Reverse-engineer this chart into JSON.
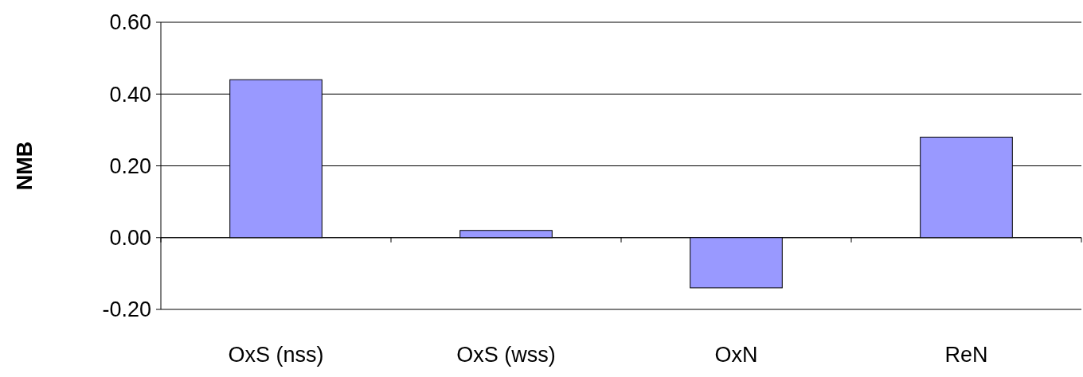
{
  "chart_data": {
    "type": "bar",
    "ylabel": "NMB",
    "categories": [
      "OxS (nss)",
      "OxS (wss)",
      "OxN",
      "ReN"
    ],
    "values": [
      0.44,
      0.02,
      -0.14,
      0.28
    ],
    "color": "#9999ff",
    "ylim": [
      -0.2,
      0.6
    ],
    "yticks": [
      {
        "value": -0.2,
        "label": "-0.20"
      },
      {
        "value": 0,
        "label": "0.00"
      },
      {
        "value": 0.2,
        "label": "0.20"
      },
      {
        "value": 0.4,
        "label": "0.40"
      },
      {
        "value": 0.6,
        "label": "0.60"
      }
    ],
    "grid": "y"
  }
}
